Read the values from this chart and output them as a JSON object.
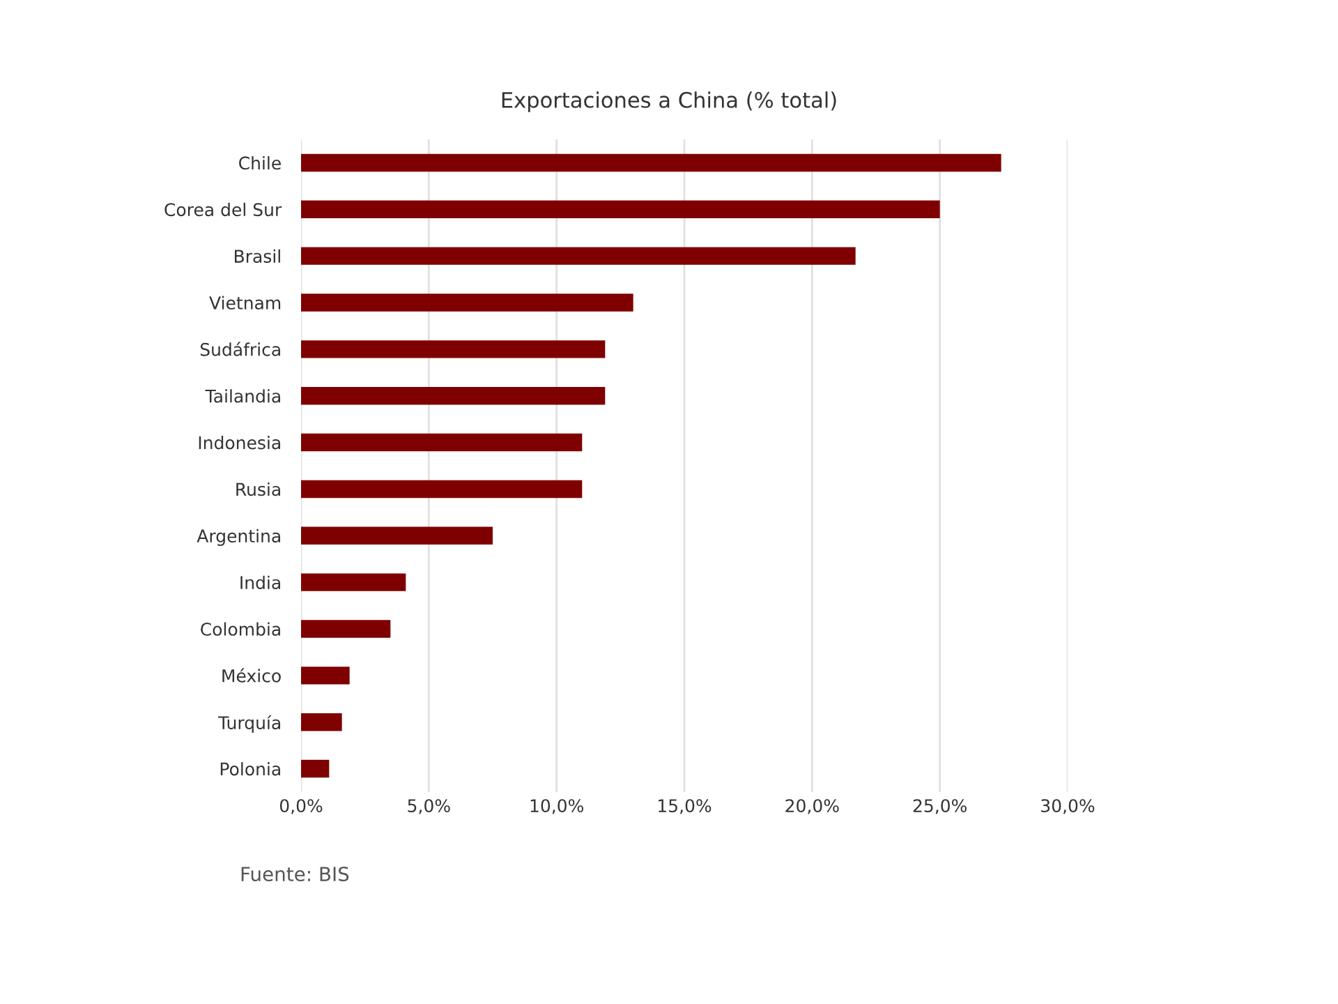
{
  "chart_data": {
    "type": "bar",
    "orientation": "horizontal",
    "title": "Exportaciones a China (% total)",
    "categories": [
      "Chile",
      "Corea del Sur",
      "Brasil",
      "Vietnam",
      "Sudáfrica",
      "Tailandia",
      "Indonesia",
      "Rusia",
      "Argentina",
      "India",
      "Colombia",
      "México",
      "Turquía",
      "Polonia"
    ],
    "values": [
      27.4,
      25.0,
      21.7,
      13.0,
      11.9,
      11.9,
      11.0,
      11.0,
      7.5,
      4.1,
      3.5,
      1.9,
      1.6,
      1.1
    ],
    "color": "#7f0000",
    "xlim": [
      0,
      30
    ],
    "xticks": [
      {
        "value": 0,
        "label": "0,0%"
      },
      {
        "value": 5,
        "label": "5,0%"
      },
      {
        "value": 10,
        "label": "10,0%"
      },
      {
        "value": 15,
        "label": "15,0%"
      },
      {
        "value": 20,
        "label": "20,0%"
      },
      {
        "value": 25,
        "label": "25,0%"
      },
      {
        "value": 30,
        "label": "30,0%"
      }
    ],
    "grid": "x",
    "annotations": [
      "Fuente: BIS"
    ]
  }
}
